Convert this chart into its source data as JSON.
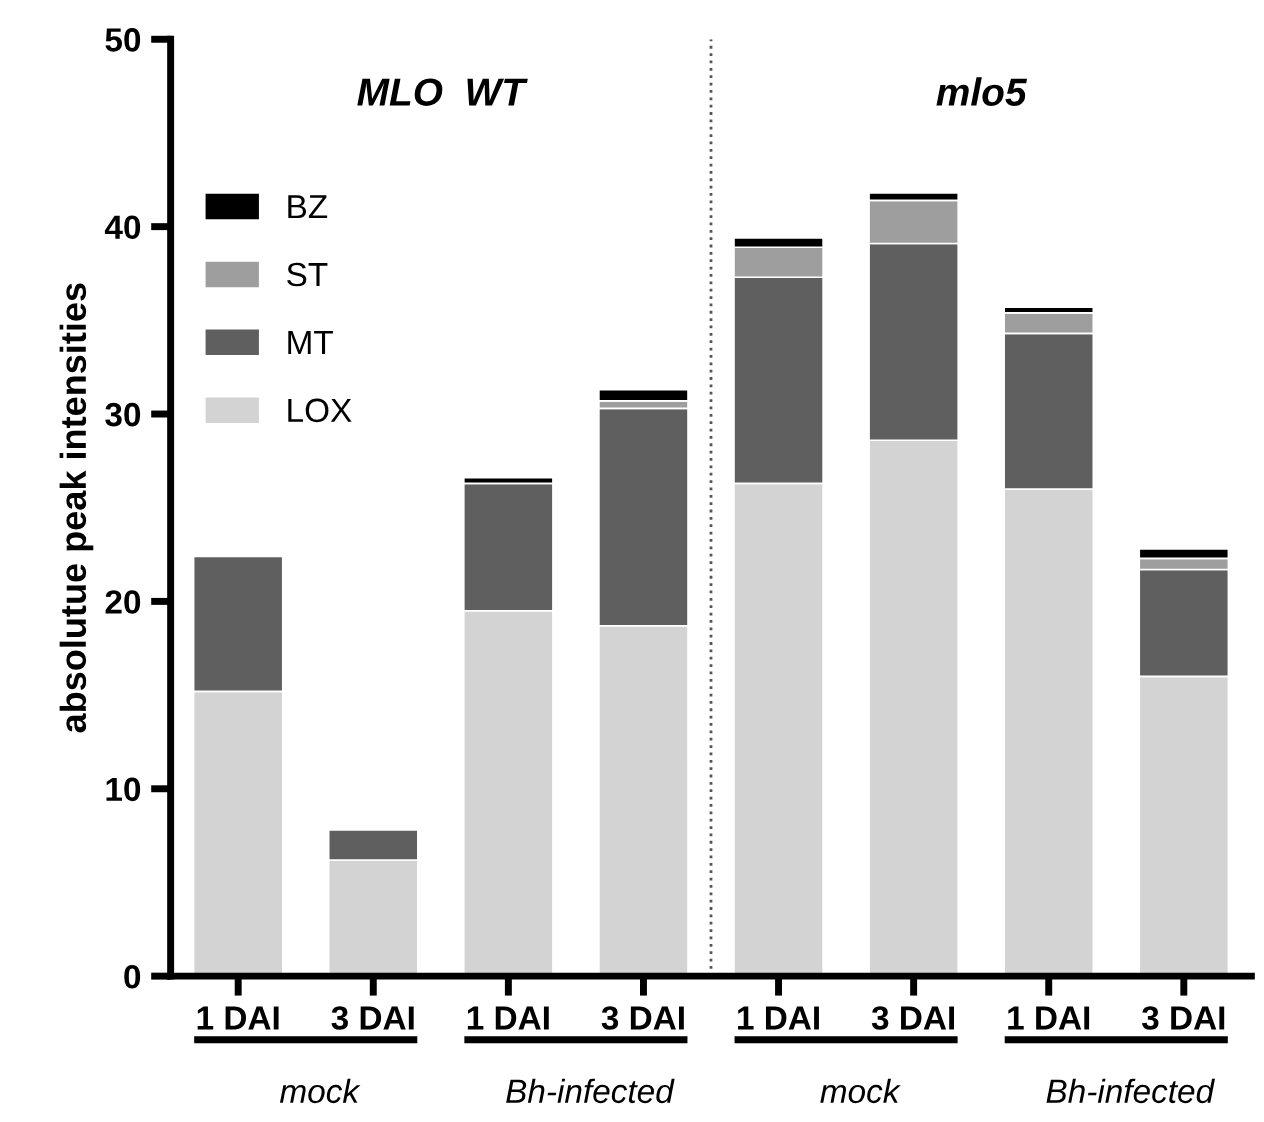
{
  "chart_data": {
    "type": "bar",
    "stacked": true,
    "ylabel": "absolutue peak intensities",
    "categories": [
      "1 DAI",
      "3 DAI",
      "1 DAI",
      "3 DAI",
      "1 DAI",
      "3 DAI",
      "1 DAI",
      "3 DAI"
    ],
    "series": [
      {
        "name": "LOX",
        "color": "#d3d3d3",
        "values": [
          15.2,
          6.2,
          19.5,
          18.7,
          26.3,
          28.6,
          26.0,
          16.0
        ]
      },
      {
        "name": "MT",
        "color": "#5f5f5f",
        "values": [
          7.2,
          1.6,
          6.8,
          11.6,
          11.0,
          10.5,
          8.3,
          5.7
        ]
      },
      {
        "name": "ST",
        "color": "#9e9e9e",
        "values": [
          null,
          null,
          null,
          0.4,
          1.6,
          2.3,
          1.1,
          0.6
        ]
      },
      {
        "name": "BZ",
        "color": "#000000",
        "values": [
          null,
          null,
          0.3,
          0.6,
          0.5,
          0.4,
          0.3,
          0.5
        ]
      }
    ],
    "ylim": [
      0,
      50
    ],
    "yticks": [
      0,
      10,
      20,
      30,
      40,
      50
    ],
    "annotations": [
      "MLO  WT",
      "mlo5",
      "mock",
      "Bh-infected",
      "mock",
      "Bh-infected"
    ],
    "legend": "top left",
    "grid": false
  }
}
